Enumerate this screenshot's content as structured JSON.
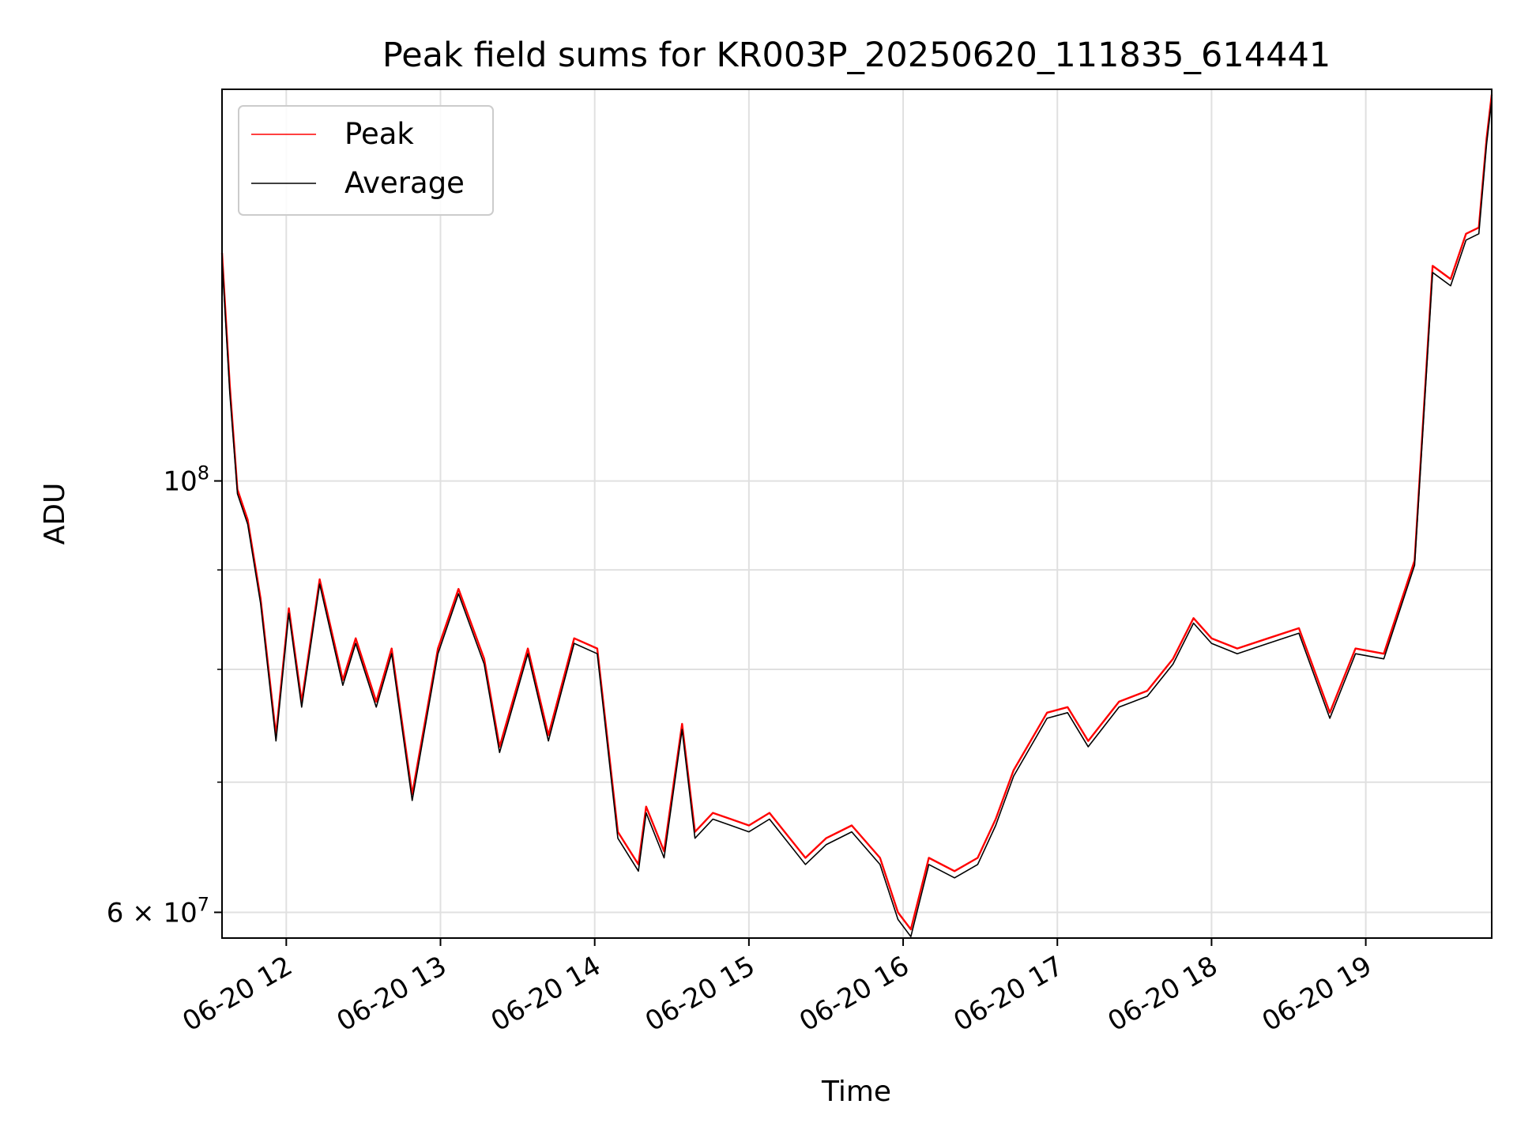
{
  "chart_data": {
    "type": "line",
    "title": "Peak field sums for KR003P_20250620_111835_614441",
    "xlabel": "Time",
    "ylabel": "ADU",
    "yscale": "log",
    "grid": true,
    "legend_position": "top-left",
    "xlim": [
      "2025-06-20 11:35",
      "2025-06-20 19:49"
    ],
    "ylim": [
      58200000,
      159000000
    ],
    "x_ticks": [
      "06-20 12",
      "06-20 13",
      "06-20 14",
      "06-20 15",
      "06-20 16",
      "06-20 17",
      "06-20 18",
      "06-20 19"
    ],
    "y_major_ticks": [
      {
        "label_base": "10",
        "label_exp": "8",
        "value": 100000000
      },
      {
        "label_base": "6 × 10",
        "label_exp": "7",
        "value": 60000000
      }
    ],
    "y_minor_ticks": [
      70000000,
      80000000,
      90000000
    ],
    "x": [
      "11:35",
      "11:38",
      "11:41",
      "11:45",
      "11:50",
      "11:56",
      "12:01",
      "12:06",
      "12:13",
      "12:22",
      "12:27",
      "12:35",
      "12:41",
      "12:49",
      "12:59",
      "13:07",
      "13:17",
      "13:23",
      "13:34",
      "13:42",
      "13:52",
      "14:01",
      "14:09",
      "14:17",
      "14:20",
      "14:27",
      "14:34",
      "14:39",
      "14:46",
      "14:53",
      "15:00",
      "15:08",
      "15:22",
      "15:30",
      "15:40",
      "15:51",
      "15:58",
      "16:03",
      "16:10",
      "16:20",
      "16:29",
      "16:36",
      "16:43",
      "16:56",
      "17:04",
      "17:12",
      "17:24",
      "17:35",
      "17:45",
      "17:53",
      "18:00",
      "18:10",
      "18:22",
      "18:34",
      "18:46",
      "18:56",
      "19:07",
      "19:19",
      "19:26",
      "19:33",
      "19:39",
      "19:44",
      "19:47",
      "19:49"
    ],
    "series": [
      {
        "name": "Peak",
        "color": "#ff0000",
        "values": [
          131000000,
          112000000,
          99000000,
          95500000,
          87000000,
          74000000,
          86000000,
          77000000,
          89000000,
          79000000,
          83000000,
          77000000,
          82000000,
          69000000,
          82000000,
          88000000,
          81000000,
          73000000,
          82000000,
          74000000,
          83000000,
          82000000,
          66000000,
          63500000,
          68000000,
          64500000,
          75000000,
          66000000,
          67500000,
          67000000,
          66500000,
          67500000,
          64000000,
          65500000,
          66500000,
          64000000,
          60000000,
          58800000,
          64000000,
          63000000,
          64000000,
          67000000,
          71000000,
          76000000,
          76500000,
          73500000,
          77000000,
          78000000,
          81000000,
          85000000,
          83000000,
          82000000,
          83000000,
          84000000,
          76000000,
          82000000,
          81500000,
          91000000,
          129000000,
          127000000,
          134000000,
          135000000,
          150000000,
          158000000
        ]
      },
      {
        "name": "Average",
        "color": "#000000",
        "values": [
          130000000,
          111000000,
          98500000,
          95000000,
          86500000,
          73500000,
          85500000,
          76500000,
          88500000,
          78500000,
          82500000,
          76500000,
          81500000,
          68500000,
          81500000,
          87500000,
          80500000,
          72500000,
          81500000,
          73500000,
          82500000,
          81500000,
          65500000,
          63000000,
          67500000,
          64000000,
          74500000,
          65500000,
          67000000,
          66500000,
          66000000,
          67000000,
          63500000,
          65000000,
          66000000,
          63500000,
          59500000,
          58300000,
          63500000,
          62500000,
          63500000,
          66500000,
          70500000,
          75500000,
          76000000,
          73000000,
          76500000,
          77500000,
          80500000,
          84500000,
          82500000,
          81500000,
          82500000,
          83500000,
          75500000,
          81500000,
          81000000,
          90500000,
          128000000,
          126000000,
          133000000,
          134000000,
          149000000,
          157000000
        ]
      }
    ]
  }
}
